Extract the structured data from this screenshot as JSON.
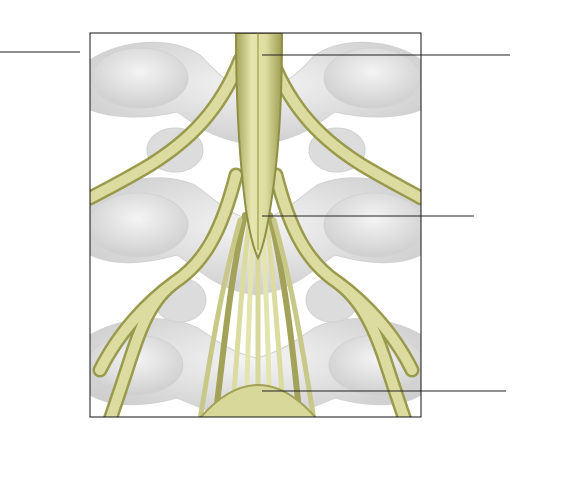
{
  "figure": {
    "subject": "spinal-cord-conus-medullaris-cauda-equina",
    "colors": {
      "background": "#ffffff",
      "frame": "#111111",
      "bone": "#e7e7e7",
      "bone_shadow": "#c9c9c9",
      "nerve": "#d9d99a",
      "nerve_dark": "#9a9a4e",
      "nerve_light": "#f0f0c4",
      "leader_line": "#222222"
    },
    "labels": [
      {
        "id": "label-left-top",
        "text": ""
      },
      {
        "id": "label-right-top",
        "text": ""
      },
      {
        "id": "label-right-middle",
        "text": ""
      },
      {
        "id": "label-right-bottom",
        "text": ""
      }
    ]
  }
}
